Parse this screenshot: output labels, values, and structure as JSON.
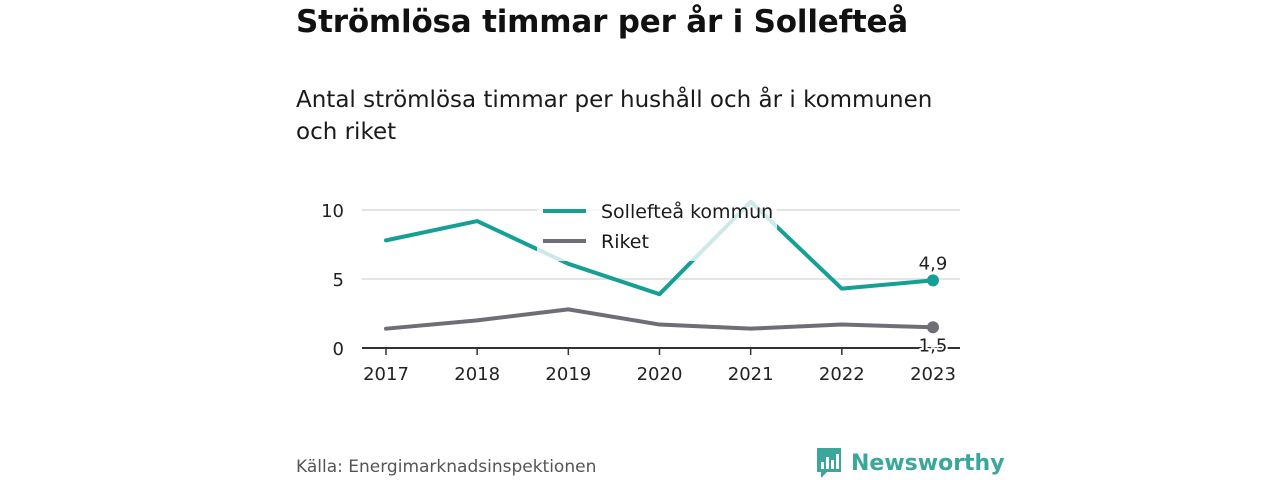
{
  "title": "Strömlösa timmar per år i Sollefteå",
  "subtitle": "Antal strömlösa timmar per hushåll och år i kommunen och riket",
  "source": "Källa: Energimarknadsinspektionen",
  "brand": {
    "name": "Newsworthy",
    "icon": "bar-chart-logo-icon",
    "color": "#3aa79a"
  },
  "chart_data": {
    "type": "line",
    "categories": [
      "2017",
      "2018",
      "2019",
      "2020",
      "2021",
      "2022",
      "2023"
    ],
    "ylim": [
      0,
      10
    ],
    "yticks": [
      0,
      5,
      10
    ],
    "grid": true,
    "legend_position": "top-center",
    "series": [
      {
        "name": "Sollefteå kommun",
        "color": "#14a095",
        "values": [
          7.8,
          9.2,
          6.1,
          3.9,
          10.6,
          4.3,
          4.9
        ],
        "end_label": "4,9"
      },
      {
        "name": "Riket",
        "color": "#6e6e78",
        "values": [
          1.4,
          2.0,
          2.8,
          1.7,
          1.4,
          1.7,
          1.5
        ],
        "end_label": "1,5"
      }
    ]
  }
}
